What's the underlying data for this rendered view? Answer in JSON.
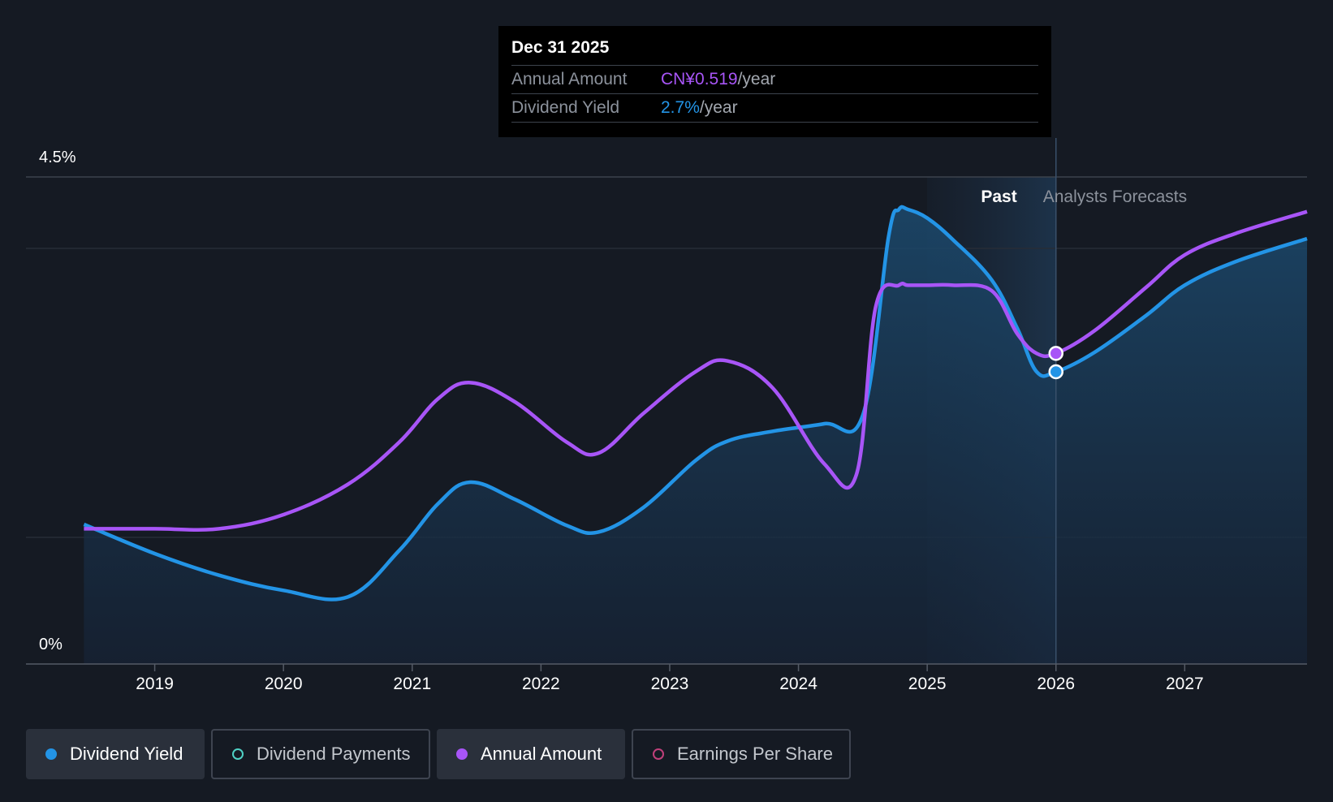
{
  "tooltip": {
    "date": "Dec 31 2025",
    "rows": [
      {
        "label": "Annual Amount",
        "value": "CN¥0.519",
        "unit": "/year"
      },
      {
        "label": "Dividend Yield",
        "value": "2.7%",
        "unit": "/year"
      }
    ]
  },
  "legend": [
    {
      "label": "Dividend Yield",
      "color": "#2394e6",
      "active": true
    },
    {
      "label": "Dividend Payments",
      "color": "#4fd1c5",
      "active": false
    },
    {
      "label": "Annual Amount",
      "color": "#a855f7",
      "active": true
    },
    {
      "label": "Earnings Per Share",
      "color": "#c0407a",
      "active": false
    }
  ],
  "colors": {
    "yield": "#2394e6",
    "amount": "#a855f7",
    "background": "#151a23"
  },
  "chart_data": {
    "type": "line",
    "xlabel": "",
    "ylabel": "",
    "ylim": [
      0,
      4.5
    ],
    "xlim": [
      2018.0,
      2027.95
    ],
    "ytick_labels": [
      "4.5%",
      "0%"
    ],
    "x_ticks": [
      2019,
      2020,
      2021,
      2022,
      2023,
      2024,
      2025,
      2026,
      2027
    ],
    "x_tick_labels": [
      "2019",
      "2020",
      "2021",
      "2022",
      "2023",
      "2024",
      "2025",
      "2026",
      "2027"
    ],
    "regions": {
      "past_label": "Past",
      "forecast_label": "Analysts Forecasts",
      "past_end": 2026.0
    },
    "highlight_x": 2026.0,
    "series": [
      {
        "name": "Dividend Yield",
        "unit": "%",
        "x": [
          2018.45,
          2019.0,
          2019.5,
          2020.0,
          2020.5,
          2020.9,
          2021.2,
          2021.45,
          2021.8,
          2022.2,
          2022.45,
          2022.8,
          2023.2,
          2023.45,
          2023.8,
          2024.2,
          2024.5,
          2024.7,
          2024.78,
          2024.85,
          2025.0,
          2025.2,
          2025.5,
          2025.7,
          2025.85,
          2026.0,
          2026.3,
          2026.7,
          2027.0,
          2027.4,
          2027.95
        ],
        "values": [
          1.29,
          1.02,
          0.82,
          0.68,
          0.62,
          1.05,
          1.48,
          1.68,
          1.52,
          1.28,
          1.22,
          1.45,
          1.88,
          2.06,
          2.15,
          2.22,
          2.3,
          3.95,
          4.2,
          4.2,
          4.12,
          3.92,
          3.55,
          3.1,
          2.7,
          2.7,
          2.88,
          3.22,
          3.5,
          3.72,
          3.93
        ]
      },
      {
        "name": "Annual Amount",
        "unit": "CN¥",
        "x": [
          2018.45,
          2019.0,
          2019.5,
          2020.0,
          2020.5,
          2020.9,
          2021.2,
          2021.45,
          2021.8,
          2022.2,
          2022.45,
          2022.8,
          2023.2,
          2023.45,
          2023.8,
          2024.2,
          2024.45,
          2024.6,
          2024.78,
          2024.85,
          2025.0,
          2025.2,
          2025.5,
          2025.7,
          2025.85,
          2026.0,
          2026.3,
          2026.7,
          2027.0,
          2027.4,
          2027.95
        ],
        "values": [
          1.25,
          1.25,
          1.25,
          1.38,
          1.66,
          2.05,
          2.45,
          2.6,
          2.42,
          2.05,
          1.95,
          2.32,
          2.7,
          2.8,
          2.55,
          1.85,
          1.75,
          3.3,
          3.5,
          3.5,
          3.5,
          3.5,
          3.45,
          3.05,
          2.87,
          2.87,
          3.08,
          3.48,
          3.78,
          3.98,
          4.18
        ]
      }
    ]
  }
}
